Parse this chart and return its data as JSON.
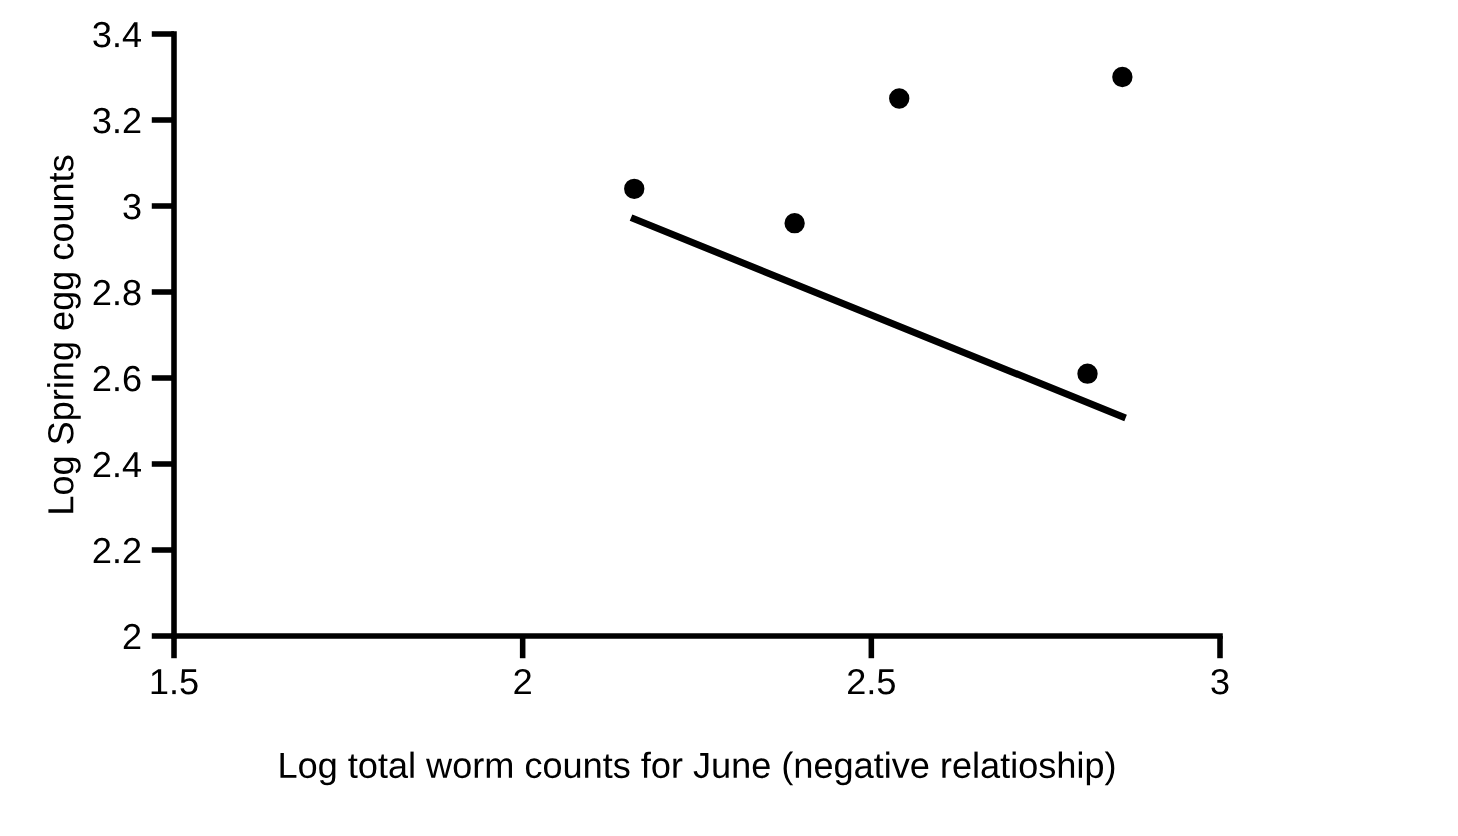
{
  "chart_data": {
    "type": "scatter",
    "xlabel": "Log total worm counts for June (negative relatioship)",
    "ylabel": "Log Spring egg counts",
    "xlim": [
      1.5,
      3
    ],
    "xticks": [
      1.5,
      2,
      2.5,
      3
    ],
    "ylim": [
      2,
      3.4
    ],
    "yticks": [
      2,
      2.2,
      2.4,
      2.6,
      2.8,
      3,
      3.2,
      3.4
    ],
    "grid": false,
    "series": [
      {
        "color": "#000000",
        "marker": "circle",
        "x": [
          2.16,
          2.39,
          2.54,
          2.81,
          2.86
        ],
        "values": [
          3.04,
          2.96,
          3.25,
          2.61,
          3.3
        ]
      },
      {
        "type": "line",
        "marker": "none",
        "color": "#000000",
        "x": [
          2.16,
          2.86
        ],
        "values": [
          2.97,
          2.51
        ]
      }
    ]
  }
}
